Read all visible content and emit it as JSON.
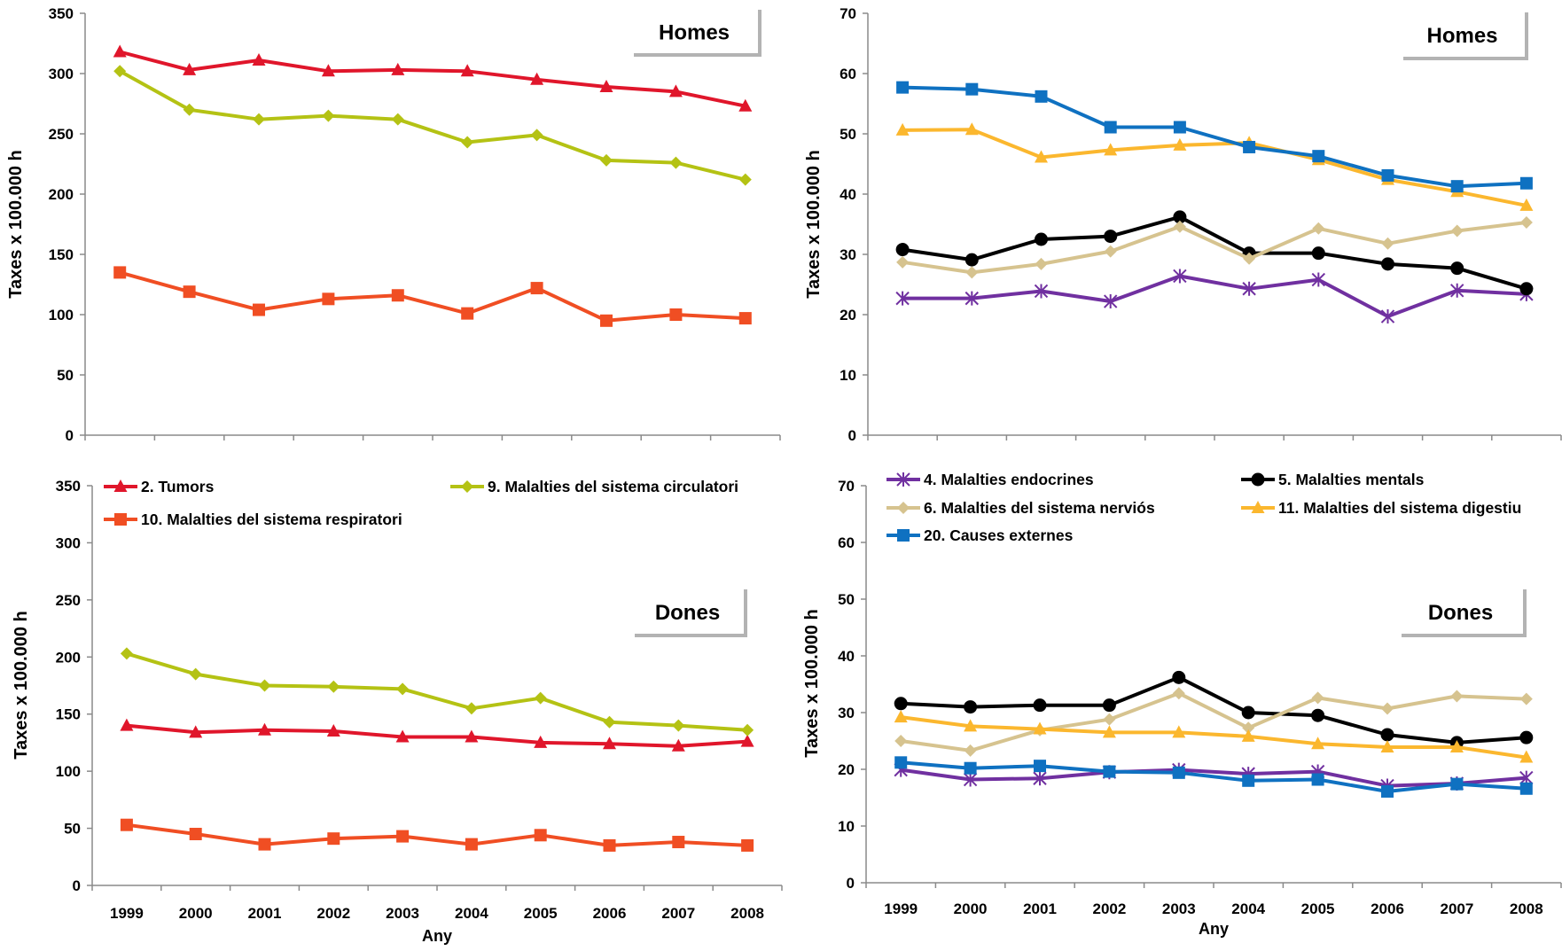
{
  "chart_data": [
    {
      "type": "line",
      "title": "Homes",
      "xlabel": "",
      "ylabel": "Taxes x 100.000 h",
      "ylim": [
        0,
        350
      ],
      "ytick_step": 50,
      "categories": [
        "1999",
        "2000",
        "2001",
        "2002",
        "2003",
        "2004",
        "2005",
        "2006",
        "2007",
        "2008"
      ],
      "show_x_tick_labels": false,
      "grid": false,
      "series": [
        {
          "name": "2. Tumors",
          "color": "#e0162b",
          "marker": "triangle",
          "values": [
            318,
            303,
            311,
            302,
            303,
            302,
            295,
            289,
            285,
            273
          ]
        },
        {
          "name": "9. Malalties del sistema circulatori",
          "color": "#b4c214",
          "marker": "diamond",
          "values": [
            302,
            270,
            262,
            265,
            262,
            243,
            249,
            228,
            226,
            212
          ]
        },
        {
          "name": "10. Malalties del sistema respiratori",
          "color": "#f04e23",
          "marker": "square",
          "values": [
            135,
            119,
            104,
            113,
            116,
            101,
            122,
            95,
            100,
            97
          ]
        }
      ]
    },
    {
      "type": "line",
      "title": "Homes",
      "xlabel": "",
      "ylabel": "Taxes x 100.000 h",
      "ylim": [
        0,
        70
      ],
      "ytick_step": 10,
      "categories": [
        "1999",
        "2000",
        "2001",
        "2002",
        "2003",
        "2004",
        "2005",
        "2006",
        "2007",
        "2008"
      ],
      "show_x_tick_labels": false,
      "grid": false,
      "series": [
        {
          "name": "4. Malalties endocrines",
          "color": "#7030a0",
          "marker": "star",
          "values": [
            22.7,
            22.7,
            23.9,
            22.2,
            26.4,
            24.3,
            25.8,
            19.7,
            24.0,
            23.4
          ]
        },
        {
          "name": "5. Malalties mentals",
          "color": "#000000",
          "marker": "circle",
          "values": [
            30.8,
            29.1,
            32.5,
            33.0,
            36.2,
            30.2,
            30.2,
            28.4,
            27.7,
            24.3
          ]
        },
        {
          "name": "6. Malalties del sistema nerviós",
          "color": "#d6c38f",
          "marker": "diamond",
          "values": [
            28.7,
            27.0,
            28.4,
            30.5,
            34.6,
            29.3,
            34.3,
            31.8,
            33.9,
            35.3
          ]
        },
        {
          "name": "11. Malalties del sistema digestiu",
          "color": "#fbb72e",
          "marker": "triangle",
          "values": [
            50.6,
            50.7,
            46.1,
            47.3,
            48.1,
            48.5,
            45.7,
            42.4,
            40.4,
            38.1
          ]
        },
        {
          "name": "20. Causes externes",
          "color": "#0f71c1",
          "marker": "square",
          "values": [
            57.7,
            57.4,
            56.2,
            51.1,
            51.1,
            47.8,
            46.3,
            43.1,
            41.3,
            41.8
          ]
        }
      ]
    },
    {
      "type": "line",
      "title": "Dones",
      "xlabel": "Any",
      "ylabel": "Taxes x 100.000 h",
      "ylim": [
        0,
        350
      ],
      "ytick_step": 50,
      "categories": [
        "1999",
        "2000",
        "2001",
        "2002",
        "2003",
        "2004",
        "2005",
        "2006",
        "2007",
        "2008"
      ],
      "show_x_tick_labels": true,
      "grid": false,
      "legend": "top",
      "series": [
        {
          "name": "2. Tumors",
          "color": "#e0162b",
          "marker": "triangle",
          "values": [
            140,
            134,
            136,
            135,
            130,
            130,
            125,
            124,
            122,
            126
          ]
        },
        {
          "name": "9. Malalties del sistema circulatori",
          "color": "#b4c214",
          "marker": "diamond",
          "values": [
            203,
            185,
            175,
            174,
            172,
            155,
            164,
            143,
            140,
            136
          ]
        },
        {
          "name": "10. Malalties del sistema respiratori",
          "color": "#f04e23",
          "marker": "square",
          "values": [
            53,
            45,
            36,
            41,
            43,
            36,
            44,
            35,
            38,
            35
          ]
        }
      ]
    },
    {
      "type": "line",
      "title": "Dones",
      "xlabel": "Any",
      "ylabel": "Taxes x 100.000 h",
      "ylim": [
        0,
        70
      ],
      "ytick_step": 10,
      "categories": [
        "1999",
        "2000",
        "2001",
        "2002",
        "2003",
        "2004",
        "2005",
        "2006",
        "2007",
        "2008"
      ],
      "show_x_tick_labels": true,
      "grid": false,
      "legend": "top",
      "series": [
        {
          "name": "4. Malalties endocrines",
          "color": "#7030a0",
          "marker": "star",
          "values": [
            19.9,
            18.2,
            18.4,
            19.5,
            19.9,
            19.2,
            19.6,
            17.1,
            17.5,
            18.5
          ]
        },
        {
          "name": "5. Malalties mentals",
          "color": "#000000",
          "marker": "circle",
          "values": [
            31.6,
            31.0,
            31.3,
            31.3,
            36.2,
            30.0,
            29.5,
            26.1,
            24.7,
            25.6
          ]
        },
        {
          "name": "6. Malalties del sistema nerviós",
          "color": "#d6c38f",
          "marker": "diamond",
          "values": [
            25.0,
            23.3,
            26.9,
            28.8,
            33.4,
            27.3,
            32.6,
            30.7,
            32.9,
            32.4
          ]
        },
        {
          "name": "11. Malalties del sistema digestiu",
          "color": "#fbb72e",
          "marker": "triangle",
          "values": [
            29.2,
            27.6,
            27.1,
            26.5,
            26.5,
            25.8,
            24.5,
            23.9,
            23.9,
            22.1
          ]
        },
        {
          "name": "20. Causes externes",
          "color": "#0f71c1",
          "marker": "square",
          "values": [
            21.2,
            20.2,
            20.6,
            19.6,
            19.4,
            18.0,
            18.2,
            16.1,
            17.4,
            16.6
          ]
        }
      ]
    }
  ]
}
